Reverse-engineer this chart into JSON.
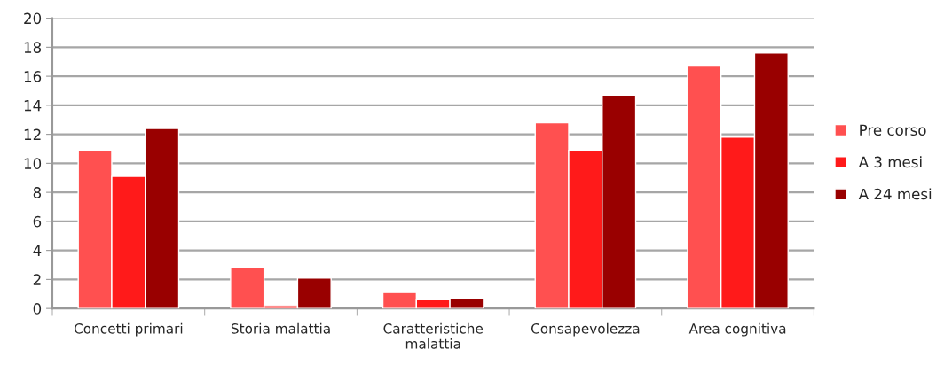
{
  "chart_data": {
    "type": "bar",
    "categories": [
      "Concetti primari",
      "Storia malattia",
      "Caratteristiche\nmalattia",
      "Consapevolezza",
      "Area cognitiva"
    ],
    "series": [
      {
        "name": "Pre corso",
        "color": "#ff5050",
        "values": [
          10.9,
          2.8,
          1.1,
          12.8,
          16.7
        ]
      },
      {
        "name": "A 3 mesi",
        "color": "#ff1a1a",
        "values": [
          9.1,
          0.2,
          0.6,
          10.9,
          11.8
        ]
      },
      {
        "name": "A 24 mesi",
        "color": "#990000",
        "values": [
          12.4,
          2.1,
          0.7,
          14.7,
          17.6
        ]
      }
    ],
    "ylim": [
      0,
      20
    ],
    "yticks": [
      0,
      2,
      4,
      6,
      8,
      10,
      12,
      14,
      16,
      18,
      20
    ],
    "grid": "y",
    "legend": "right"
  }
}
